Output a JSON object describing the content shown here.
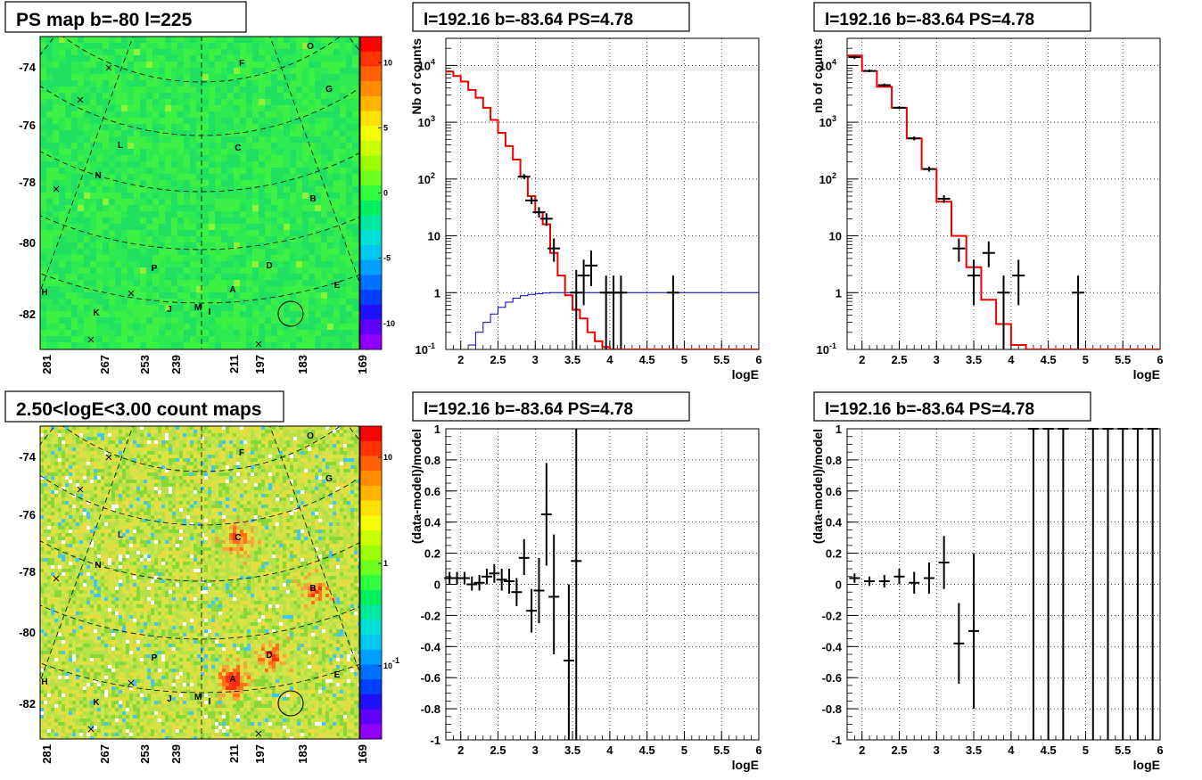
{
  "chart_data": [
    {
      "type": "heatmap",
      "title": "PS map b=-80 l=225",
      "y_ticks": [
        "-74",
        "-76",
        "-78",
        "-80",
        "-82"
      ],
      "x_ticks": [
        "281",
        "267",
        "253",
        "239",
        "211",
        "197",
        "183",
        "169"
      ],
      "colorbar_ticks": [
        "10",
        "5",
        "0",
        "-5",
        "-10"
      ],
      "colorbar_range": [
        -12,
        12
      ],
      "colorbar_scale": "linear",
      "source_labels": [
        "O",
        "F",
        "G",
        "C",
        "L",
        "N",
        "B",
        "P",
        "D",
        "E",
        "A",
        "H",
        "K",
        "J",
        "M",
        "I"
      ],
      "background_level": 0.3,
      "markers": "x"
    },
    {
      "type": "line",
      "title": "l=192.16 b=-83.64 PS=4.78",
      "xlabel": "logE",
      "ylabel": "Nb of counts",
      "xlim": [
        1.8,
        6
      ],
      "ylim": [
        0.1,
        30000
      ],
      "yscale": "log",
      "x_ticks": [
        "2",
        "2.5",
        "3",
        "3.5",
        "4",
        "4.5",
        "5",
        "5.5",
        "6"
      ],
      "y_ticks": [
        {
          "v": 0.1,
          "label": "10",
          "exp": "-1"
        },
        {
          "v": 1,
          "label": "1",
          "exp": ""
        },
        {
          "v": 10,
          "label": "10",
          "exp": ""
        },
        {
          "v": 100,
          "label": "10",
          "exp": "2"
        },
        {
          "v": 1000,
          "label": "10",
          "exp": "3"
        },
        {
          "v": 10000,
          "label": "10",
          "exp": "4"
        }
      ],
      "grid": true,
      "model_red": {
        "edges": [
          1.8,
          1.9,
          2.0,
          2.1,
          2.2,
          2.3,
          2.4,
          2.5,
          2.6,
          2.7,
          2.8,
          2.9,
          3.0,
          3.1,
          3.2,
          3.3,
          3.4,
          3.5,
          3.6,
          3.7,
          3.8,
          3.9,
          4.0,
          6.0
        ],
        "values": [
          7800,
          6500,
          5200,
          3700,
          2700,
          1800,
          1100,
          650,
          380,
          220,
          110,
          50,
          26,
          16,
          5,
          2,
          0.9,
          0.5,
          0.35,
          0.2,
          0.14,
          0.11,
          0.1
        ]
      },
      "model_blue": {
        "edges": [
          2.1,
          2.2,
          2.3,
          2.4,
          2.5,
          2.6,
          2.7,
          2.8,
          2.9,
          3.0,
          3.1,
          3.2,
          6.0
        ],
        "values": [
          0.12,
          0.2,
          0.3,
          0.42,
          0.55,
          0.68,
          0.8,
          0.88,
          0.93,
          0.96,
          0.98,
          1.0
        ]
      },
      "data_points": [
        {
          "x": 2.85,
          "y": 110,
          "lo": 100,
          "hi": 122
        },
        {
          "x": 2.95,
          "y": 42,
          "lo": 36,
          "hi": 49
        },
        {
          "x": 3.05,
          "y": 26,
          "lo": 21,
          "hi": 32
        },
        {
          "x": 3.15,
          "y": 20,
          "lo": 15,
          "hi": 25
        },
        {
          "x": 3.25,
          "y": 6,
          "lo": 3.5,
          "hi": 9
        },
        {
          "x": 3.55,
          "y": 1,
          "lo": 0.1,
          "hi": 2.5
        },
        {
          "x": 3.65,
          "y": 2,
          "lo": 0.6,
          "hi": 3.8
        },
        {
          "x": 3.75,
          "y": 3,
          "lo": 1.3,
          "hi": 5.5
        },
        {
          "x": 3.95,
          "y": 1,
          "lo": 0.1,
          "hi": 2.0
        },
        {
          "x": 4.05,
          "y": 1,
          "lo": 0.1,
          "hi": 2.0
        },
        {
          "x": 4.15,
          "y": 1,
          "lo": 0.1,
          "hi": 2.0
        },
        {
          "x": 4.85,
          "y": 1,
          "lo": 0.1,
          "hi": 2.0
        }
      ]
    },
    {
      "type": "line",
      "title": "l=192.16 b=-83.64 PS=4.78",
      "xlabel": "logE",
      "ylabel": "nb of counts",
      "xlim": [
        1.8,
        6
      ],
      "ylim": [
        0.1,
        30000
      ],
      "yscale": "log",
      "x_ticks": [
        "2",
        "2.5",
        "3",
        "3.5",
        "4",
        "4.5",
        "5",
        "5.5",
        "6"
      ],
      "y_ticks": [
        {
          "v": 0.1,
          "label": "10",
          "exp": "-1"
        },
        {
          "v": 1,
          "label": "1",
          "exp": ""
        },
        {
          "v": 10,
          "label": "10",
          "exp": ""
        },
        {
          "v": 100,
          "label": "10",
          "exp": "2"
        },
        {
          "v": 1000,
          "label": "10",
          "exp": "3"
        },
        {
          "v": 10000,
          "label": "10",
          "exp": "4"
        }
      ],
      "grid": true,
      "model_red": {
        "edges": [
          1.8,
          2.0,
          2.2,
          2.4,
          2.6,
          2.8,
          3.0,
          3.2,
          3.4,
          3.6,
          3.8,
          4.0,
          4.2,
          6.0
        ],
        "values": [
          15000,
          8000,
          4200,
          1800,
          520,
          150,
          40,
          10,
          2.8,
          0.75,
          0.28,
          0.12,
          0.1
        ]
      },
      "data_points": [
        {
          "x": 1.9,
          "y": 14000,
          "lo": 13000,
          "hi": 15000
        },
        {
          "x": 2.1,
          "y": 8000,
          "lo": 7600,
          "hi": 8500
        },
        {
          "x": 2.3,
          "y": 4500,
          "lo": 4200,
          "hi": 4800
        },
        {
          "x": 2.5,
          "y": 1800,
          "lo": 1700,
          "hi": 1900
        },
        {
          "x": 2.7,
          "y": 520,
          "lo": 480,
          "hi": 560
        },
        {
          "x": 2.9,
          "y": 150,
          "lo": 135,
          "hi": 165
        },
        {
          "x": 3.1,
          "y": 45,
          "lo": 38,
          "hi": 52
        },
        {
          "x": 3.3,
          "y": 6,
          "lo": 3.5,
          "hi": 9
        },
        {
          "x": 3.5,
          "y": 2,
          "lo": 0.6,
          "hi": 3.8
        },
        {
          "x": 3.7,
          "y": 5,
          "lo": 2.8,
          "hi": 8
        },
        {
          "x": 3.9,
          "y": 1,
          "lo": 0.1,
          "hi": 2.0
        },
        {
          "x": 4.1,
          "y": 2,
          "lo": 0.6,
          "hi": 3.8
        },
        {
          "x": 4.9,
          "y": 1,
          "lo": 0.1,
          "hi": 2.0
        }
      ]
    },
    {
      "type": "heatmap",
      "title": "2.50<logE<3.00 count maps",
      "y_ticks": [
        "-74",
        "-76",
        "-78",
        "-80",
        "-82"
      ],
      "x_ticks": [
        "281",
        "267",
        "253",
        "239",
        "211",
        "197",
        "183",
        "169"
      ],
      "colorbar_ticks": [
        {
          "label": "10",
          "exp": ""
        },
        {
          "label": "1",
          "exp": ""
        },
        {
          "label": "10",
          "exp": "-1"
        }
      ],
      "colorbar_scale": "log",
      "source_labels": [
        "O",
        "F",
        "G",
        "C",
        "L",
        "N",
        "B",
        "P",
        "D",
        "E",
        "A",
        "H",
        "K",
        "J",
        "M",
        "I"
      ],
      "bright_sources": [
        "A",
        "B",
        "C",
        "D"
      ],
      "markers": "x"
    },
    {
      "type": "scatter",
      "title": "l=192.16 b=-83.64 PS=4.78",
      "xlabel": "logE",
      "ylabel": "(data-model)/model",
      "xlim": [
        1.8,
        6
      ],
      "ylim": [
        -1,
        1
      ],
      "x_ticks": [
        "2",
        "2.5",
        "3",
        "3.5",
        "4",
        "4.5",
        "5",
        "5.5",
        "6"
      ],
      "y_ticks": [
        "-1",
        "-0.8",
        "-0.6",
        "-0.4",
        "-0.2",
        "0",
        "0.2",
        "0.4",
        "0.6",
        "0.8",
        "1"
      ],
      "grid": true,
      "data_points": [
        {
          "x": 1.85,
          "y": 0.04,
          "lo": 0.0,
          "hi": 0.08
        },
        {
          "x": 1.95,
          "y": 0.04,
          "lo": 0.0,
          "hi": 0.08
        },
        {
          "x": 2.05,
          "y": 0.04,
          "lo": 0.0,
          "hi": 0.08
        },
        {
          "x": 2.15,
          "y": 0.0,
          "lo": -0.04,
          "hi": 0.05
        },
        {
          "x": 2.25,
          "y": 0.01,
          "lo": -0.04,
          "hi": 0.06
        },
        {
          "x": 2.35,
          "y": 0.05,
          "lo": 0.0,
          "hi": 0.1
        },
        {
          "x": 2.45,
          "y": 0.07,
          "lo": 0.01,
          "hi": 0.13
        },
        {
          "x": 2.55,
          "y": 0.03,
          "lo": -0.04,
          "hi": 0.1
        },
        {
          "x": 2.65,
          "y": 0.02,
          "lo": -0.06,
          "hi": 0.1
        },
        {
          "x": 2.75,
          "y": -0.05,
          "lo": -0.14,
          "hi": 0.04
        },
        {
          "x": 2.85,
          "y": 0.17,
          "lo": 0.06,
          "hi": 0.29
        },
        {
          "x": 2.95,
          "y": -0.17,
          "lo": -0.31,
          "hi": -0.03
        },
        {
          "x": 3.05,
          "y": -0.04,
          "lo": -0.25,
          "hi": 0.17
        },
        {
          "x": 3.15,
          "y": 0.45,
          "lo": 0.12,
          "hi": 0.78
        },
        {
          "x": 3.25,
          "y": -0.08,
          "lo": -0.45,
          "hi": 0.32
        },
        {
          "x": 3.45,
          "y": -0.49,
          "lo": -1.0,
          "hi": 0.0
        },
        {
          "x": 3.55,
          "y": 0.15,
          "lo": -1.0,
          "hi": 1.0
        }
      ]
    },
    {
      "type": "scatter",
      "title": "l=192.16 b=-83.64 PS=4.78",
      "xlabel": "logE",
      "ylabel": "(data-model)/model",
      "xlim": [
        1.8,
        6
      ],
      "ylim": [
        -1,
        1
      ],
      "x_ticks": [
        "2",
        "2.5",
        "3",
        "3.5",
        "4",
        "4.5",
        "5",
        "5.5",
        "6"
      ],
      "y_ticks": [
        "-1",
        "-0.8",
        "-0.6",
        "-0.4",
        "-0.2",
        "0",
        "0.2",
        "0.4",
        "0.6",
        "0.8",
        "1"
      ],
      "grid": true,
      "data_points": [
        {
          "x": 1.9,
          "y": 0.04,
          "lo": 0.01,
          "hi": 0.07
        },
        {
          "x": 2.1,
          "y": 0.02,
          "lo": -0.01,
          "hi": 0.05
        },
        {
          "x": 2.3,
          "y": 0.02,
          "lo": -0.02,
          "hi": 0.06
        },
        {
          "x": 2.5,
          "y": 0.05,
          "lo": 0.0,
          "hi": 0.1
        },
        {
          "x": 2.7,
          "y": 0.01,
          "lo": -0.06,
          "hi": 0.08
        },
        {
          "x": 2.9,
          "y": 0.04,
          "lo": -0.06,
          "hi": 0.14
        },
        {
          "x": 3.1,
          "y": 0.14,
          "lo": -0.03,
          "hi": 0.31
        },
        {
          "x": 3.3,
          "y": -0.38,
          "lo": -0.64,
          "hi": -0.12
        },
        {
          "x": 3.5,
          "y": -0.3,
          "lo": -0.8,
          "hi": 0.2
        },
        {
          "x": 4.3,
          "y": 1.0,
          "lo": -1.0,
          "hi": 1.0
        },
        {
          "x": 4.5,
          "y": 1.0,
          "lo": -1.0,
          "hi": 1.0
        },
        {
          "x": 4.7,
          "y": 1.0,
          "lo": -1.0,
          "hi": 1.0
        },
        {
          "x": 5.1,
          "y": 1.0,
          "lo": -1.0,
          "hi": 1.0
        },
        {
          "x": 5.3,
          "y": 1.0,
          "lo": -1.0,
          "hi": 1.0
        },
        {
          "x": 5.5,
          "y": 1.0,
          "lo": -1.0,
          "hi": 1.0
        },
        {
          "x": 5.7,
          "y": 1.0,
          "lo": -1.0,
          "hi": 1.0
        },
        {
          "x": 5.9,
          "y": 1.0,
          "lo": -1.0,
          "hi": 1.0
        }
      ]
    }
  ]
}
